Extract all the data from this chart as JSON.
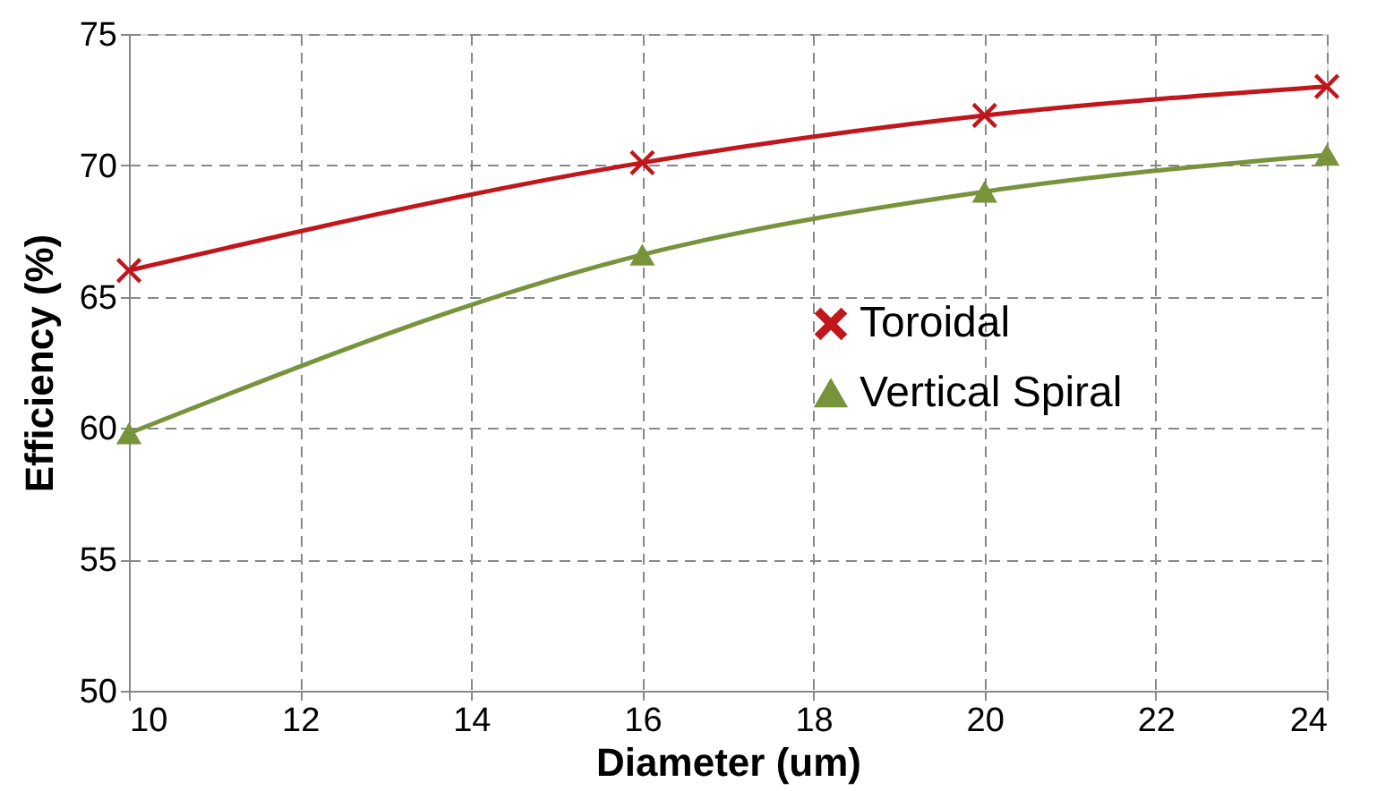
{
  "chart_data": {
    "type": "line",
    "xlabel": "Diameter (um)",
    "ylabel": "Efficiency (%)",
    "x": [
      10,
      16,
      20,
      24
    ],
    "series": [
      {
        "name": "Toroidal",
        "color": "#c0161c",
        "marker": "cross",
        "values": [
          66,
          70.1,
          71.9,
          73
        ]
      },
      {
        "name": "Vertical Spiral",
        "color": "#77933c",
        "marker": "triangle",
        "values": [
          59.8,
          66.6,
          69,
          70.4
        ]
      }
    ],
    "xlim": [
      10,
      24
    ],
    "xticks": [
      10,
      12,
      14,
      16,
      18,
      20,
      22,
      24
    ],
    "ylim": [
      50,
      75
    ],
    "yticks": [
      50,
      55,
      60,
      65,
      70,
      75
    ],
    "grid": true,
    "legend": "center",
    "line_style": "solid"
  }
}
